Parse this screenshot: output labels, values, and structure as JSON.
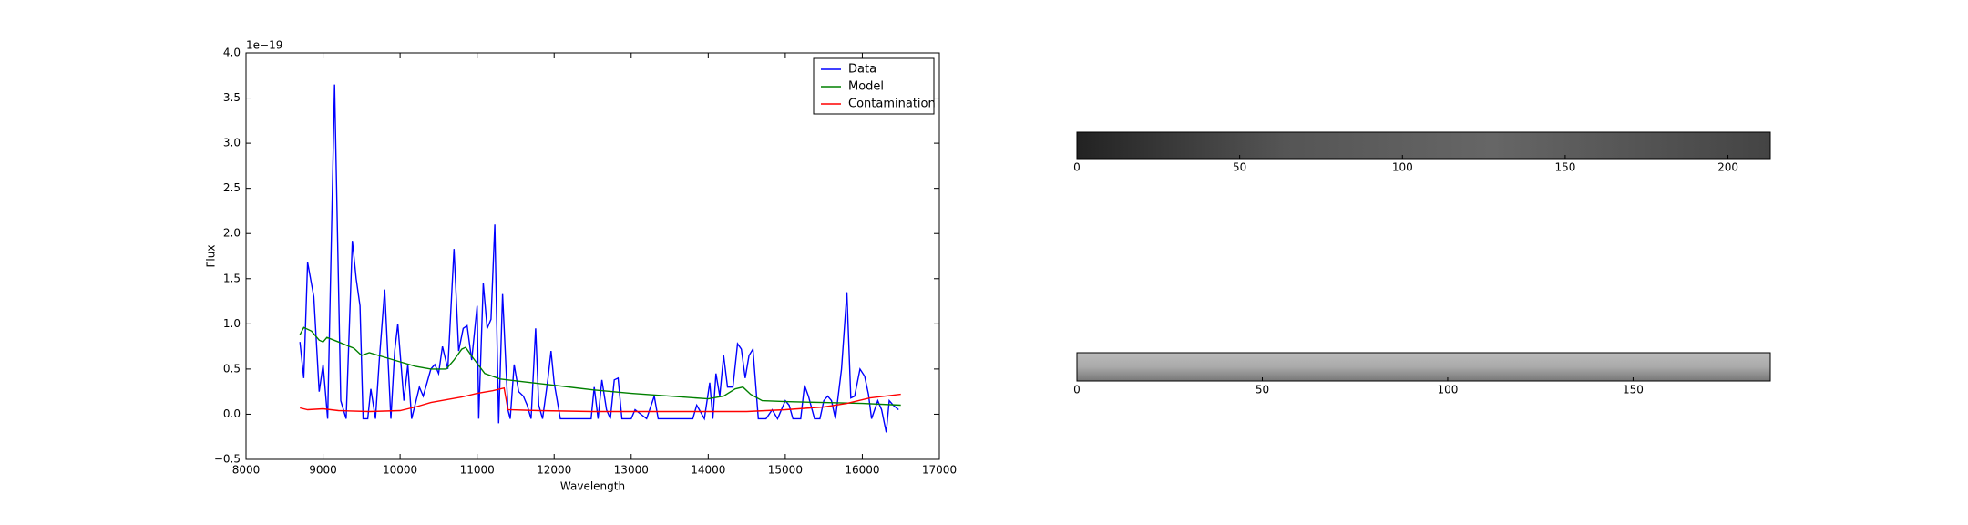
{
  "chart_data": [
    {
      "type": "line",
      "xlabel": "Wavelength",
      "ylabel": "Flux",
      "offset_text": "1e−19",
      "xlim": [
        8000,
        17000
      ],
      "ylim": [
        -0.5,
        4.0
      ],
      "xticks": [
        8000,
        9000,
        10000,
        11000,
        12000,
        13000,
        14000,
        15000,
        16000,
        17000
      ],
      "yticks": [
        {
          "value": -0.5,
          "label": "−0.5"
        },
        {
          "value": 0,
          "label": "0.0"
        },
        {
          "value": 0.5,
          "label": "0.5"
        },
        {
          "value": 1,
          "label": "1.0"
        },
        {
          "value": 1.5,
          "label": "1.5"
        },
        {
          "value": 2,
          "label": "2.0"
        },
        {
          "value": 2.5,
          "label": "2.5"
        },
        {
          "value": 3,
          "label": "3.0"
        },
        {
          "value": 3.5,
          "label": "3.5"
        },
        {
          "value": 4,
          "label": "4.0"
        }
      ],
      "legend": "upper right",
      "series": [
        {
          "name": "Data",
          "color": "#0000ff",
          "x": [
            8700,
            8750,
            8800,
            8880,
            8950,
            9000,
            9060,
            9150,
            9230,
            9300,
            9380,
            9430,
            9480,
            9520,
            9580,
            9620,
            9680,
            9730,
            9800,
            9880,
            9930,
            9970,
            10050,
            10100,
            10150,
            10250,
            10300,
            10400,
            10450,
            10500,
            10550,
            10620,
            10700,
            10760,
            10820,
            10870,
            10930,
            11000,
            11020,
            11080,
            11130,
            11180,
            11230,
            11280,
            11330,
            11400,
            11430,
            11480,
            11540,
            11600,
            11650,
            11700,
            11760,
            11800,
            11850,
            11920,
            11960,
            12000,
            12080,
            12200,
            12350,
            12480,
            12520,
            12570,
            12620,
            12680,
            12730,
            12780,
            12830,
            12880,
            13000,
            13050,
            13200,
            13300,
            13350,
            13600,
            13800,
            13850,
            13950,
            14020,
            14060,
            14100,
            14150,
            14200,
            14250,
            14320,
            14380,
            14430,
            14480,
            14530,
            14580,
            14650,
            14750,
            14830,
            14900,
            15000,
            15050,
            15100,
            15200,
            15250,
            15300,
            15380,
            15450,
            15500,
            15550,
            15600,
            15650,
            15730,
            15800,
            15850,
            15900,
            15970,
            16030,
            16080,
            16120,
            16200,
            16250,
            16310,
            16350,
            16400,
            16470
          ],
          "values": [
            0.8,
            0.4,
            1.68,
            1.3,
            0.25,
            0.55,
            -0.05,
            3.65,
            0.15,
            -0.05,
            1.92,
            1.5,
            1.2,
            -0.05,
            -0.05,
            0.28,
            -0.05,
            0.6,
            1.38,
            -0.05,
            0.7,
            1.0,
            0.15,
            0.55,
            -0.05,
            0.3,
            0.2,
            0.5,
            0.55,
            0.45,
            0.75,
            0.5,
            1.83,
            0.7,
            0.95,
            0.98,
            0.6,
            1.2,
            -0.05,
            1.45,
            0.95,
            1.05,
            2.1,
            -0.1,
            1.33,
            0.05,
            -0.05,
            0.55,
            0.25,
            0.2,
            0.1,
            -0.05,
            0.95,
            0.1,
            -0.05,
            0.4,
            0.7,
            0.35,
            -0.05,
            -0.05,
            -0.05,
            -0.05,
            0.3,
            -0.05,
            0.38,
            0.05,
            -0.05,
            0.38,
            0.4,
            -0.05,
            -0.05,
            0.05,
            -0.05,
            0.2,
            -0.05,
            -0.05,
            -0.05,
            0.1,
            -0.05,
            0.35,
            -0.05,
            0.45,
            0.2,
            0.65,
            0.3,
            0.3,
            0.78,
            0.72,
            0.4,
            0.65,
            0.72,
            -0.05,
            -0.05,
            0.05,
            -0.05,
            0.15,
            0.1,
            -0.05,
            -0.05,
            0.32,
            0.2,
            -0.05,
            -0.05,
            0.15,
            0.2,
            0.15,
            -0.05,
            0.5,
            1.35,
            0.18,
            0.2,
            0.5,
            0.42,
            0.22,
            -0.05,
            0.15,
            0.05,
            -0.2,
            0.15,
            0.1,
            0.05
          ]
        },
        {
          "name": "Model",
          "color": "#008000",
          "x": [
            8700,
            8750,
            8850,
            8950,
            9000,
            9050,
            9200,
            9400,
            9500,
            9600,
            9800,
            10000,
            10200,
            10400,
            10600,
            10700,
            10800,
            10850,
            10950,
            11100,
            11300,
            11600,
            12000,
            12500,
            13000,
            13500,
            14000,
            14200,
            14350,
            14450,
            14550,
            14700,
            15000,
            15500,
            16000,
            16500
          ],
          "values": [
            0.88,
            0.96,
            0.92,
            0.82,
            0.8,
            0.85,
            0.8,
            0.73,
            0.65,
            0.68,
            0.63,
            0.58,
            0.53,
            0.5,
            0.5,
            0.6,
            0.72,
            0.74,
            0.62,
            0.45,
            0.39,
            0.36,
            0.32,
            0.27,
            0.23,
            0.2,
            0.17,
            0.2,
            0.28,
            0.3,
            0.22,
            0.15,
            0.14,
            0.13,
            0.12,
            0.1
          ]
        },
        {
          "name": "Contamination",
          "color": "#ff0000",
          "x": [
            8700,
            8800,
            9000,
            9200,
            9600,
            10000,
            10200,
            10400,
            10600,
            10800,
            11000,
            11200,
            11350,
            11400,
            11800,
            12500,
            13500,
            14500,
            15000,
            15500,
            15800,
            16100,
            16500
          ],
          "values": [
            0.07,
            0.05,
            0.06,
            0.04,
            0.03,
            0.04,
            0.08,
            0.13,
            0.16,
            0.19,
            0.23,
            0.26,
            0.29,
            0.05,
            0.04,
            0.03,
            0.03,
            0.03,
            0.05,
            0.08,
            0.12,
            0.18,
            0.22
          ]
        }
      ]
    },
    {
      "type": "image",
      "xlim": [
        0,
        213
      ],
      "xticks": [
        0,
        50,
        100,
        150,
        200
      ]
    },
    {
      "type": "image",
      "xlim": [
        0,
        187
      ],
      "xticks": [
        0,
        50,
        100,
        150
      ]
    }
  ]
}
